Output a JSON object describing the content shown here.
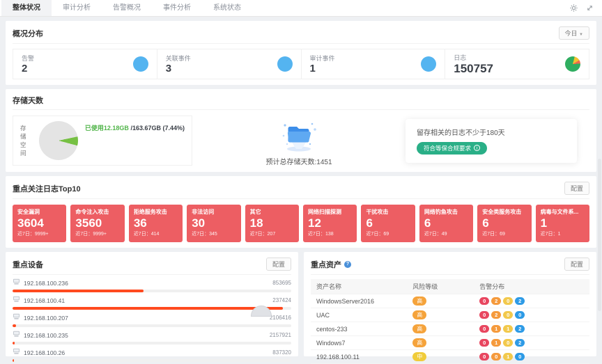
{
  "tabbar": {
    "tabs": [
      {
        "label": "整体状况",
        "active": true
      },
      {
        "label": "审计分析",
        "active": false
      },
      {
        "label": "告警概况",
        "active": false
      },
      {
        "label": "事件分析",
        "active": false
      },
      {
        "label": "系统状态",
        "active": false
      }
    ],
    "icons": [
      "gear-icon",
      "fullscreen-icon"
    ]
  },
  "overview": {
    "title": "概况分布",
    "period_selector": "今日",
    "stats": [
      {
        "label": "告警",
        "value": "2",
        "icon": "blue-circle"
      },
      {
        "label": "关联事件",
        "value": "3",
        "icon": "blue-circle"
      },
      {
        "label": "审计事件",
        "value": "1",
        "icon": "blue-circle"
      },
      {
        "label": "日志",
        "value": "150757",
        "icon": "pie"
      }
    ]
  },
  "storage": {
    "title": "存储天数",
    "space_label": "存储空间",
    "used_label": "已使用12.18GB",
    "total_label": "/163.67GB (7.44%)",
    "used_percent": 7.44,
    "days_label": "预计总存储天数:1451",
    "retention_note": "留存相关的日志不少于180天",
    "compliance_badge": "符合等保合规要求"
  },
  "top_logs": {
    "title": "重点关注日志Top10",
    "config_label": "配置",
    "recent_label": "近7日：",
    "cards": [
      {
        "name": "安全漏洞",
        "value": "3604",
        "recent": "9999+"
      },
      {
        "name": "命令注入攻击",
        "value": "3560",
        "recent": "9999+"
      },
      {
        "name": "拒绝服务攻击",
        "value": "36",
        "recent": "414"
      },
      {
        "name": "非法访问",
        "value": "30",
        "recent": "345"
      },
      {
        "name": "其它",
        "value": "18",
        "recent": "207"
      },
      {
        "name": "网络扫描探测",
        "value": "12",
        "recent": "138"
      },
      {
        "name": "干扰攻击",
        "value": "6",
        "recent": "69"
      },
      {
        "name": "网络钓鱼攻击",
        "value": "6",
        "recent": "49"
      },
      {
        "name": "安全类服务攻击",
        "value": "6",
        "recent": "69"
      },
      {
        "name": "病毒与文件系...",
        "value": "1",
        "recent": "1"
      }
    ]
  },
  "devices": {
    "title": "重点设备",
    "config_label": "配置",
    "rows": [
      {
        "ip": "192.168.100.236",
        "value": "853695",
        "bar": "47%"
      },
      {
        "ip": "192.168.100.41",
        "value": "237424",
        "bar": "97%"
      },
      {
        "ip": "192.168.100.207",
        "value": "2106416",
        "bar": "1.2%"
      },
      {
        "ip": "192.168.100.235",
        "value": "2157921",
        "bar": "0.8%"
      },
      {
        "ip": "192.168.100.26",
        "value": "837320",
        "bar": "0.4%"
      }
    ]
  },
  "assets": {
    "title": "重点资产",
    "config_label": "配置",
    "headers": {
      "name": "资产名称",
      "risk": "风险等级",
      "dist": "告警分布"
    },
    "rows": [
      {
        "name": "WindowsServer2016",
        "risk": "高",
        "dist": [
          "0",
          "2",
          "0",
          "2"
        ]
      },
      {
        "name": "UAC",
        "risk": "高",
        "dist": [
          "0",
          "2",
          "0",
          "0"
        ]
      },
      {
        "name": "centos-233",
        "risk": "高",
        "dist": [
          "0",
          "1",
          "1",
          "2"
        ]
      },
      {
        "name": "Windows7",
        "risk": "高",
        "dist": [
          "0",
          "1",
          "0",
          "2"
        ]
      },
      {
        "name": "192.168.100.11",
        "risk": "中",
        "dist": [
          "0",
          "0",
          "1",
          "0"
        ]
      }
    ]
  },
  "colors": {
    "stat_circle_blue": "#54b4f0",
    "log_card_red": "#ed5e63",
    "storage_used_green": "#76c043",
    "compliance_green": "#2aaf87",
    "device_bar_red": "#ff4a1f",
    "risk_high_orange": "#f5a33b",
    "risk_mid_yellow": "#f0cc3a",
    "dist_red": "#e8465f",
    "dist_orange": "#f59a3c",
    "dist_yellow": "#f2c94c",
    "dist_blue": "#2e9be6"
  }
}
